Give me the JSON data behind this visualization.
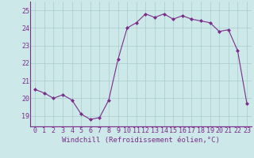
{
  "x": [
    0,
    1,
    2,
    3,
    4,
    5,
    6,
    7,
    8,
    9,
    10,
    11,
    12,
    13,
    14,
    15,
    16,
    17,
    18,
    19,
    20,
    21,
    22,
    23
  ],
  "y": [
    20.5,
    20.3,
    20.0,
    20.2,
    19.9,
    19.1,
    18.8,
    18.9,
    19.9,
    22.2,
    24.0,
    24.3,
    24.8,
    24.6,
    24.8,
    24.5,
    24.7,
    24.5,
    24.4,
    24.3,
    23.8,
    23.9,
    22.7,
    19.7
  ],
  "line_color": "#7b2d8b",
  "marker": "D",
  "marker_size": 2,
  "bg_color": "#cce8e8",
  "grid_color": "#aacccc",
  "xlabel": "Windchill (Refroidissement éolien,°C)",
  "xlabel_color": "#7b2d8b",
  "xlabel_fontsize": 6.5,
  "ylabel_ticks": [
    19,
    20,
    21,
    22,
    23,
    24,
    25
  ],
  "ylim": [
    18.4,
    25.5
  ],
  "xlim": [
    -0.5,
    23.5
  ],
  "tick_color": "#7b2d8b",
  "tick_fontsize": 6,
  "axis_color": "#7b2d8b"
}
